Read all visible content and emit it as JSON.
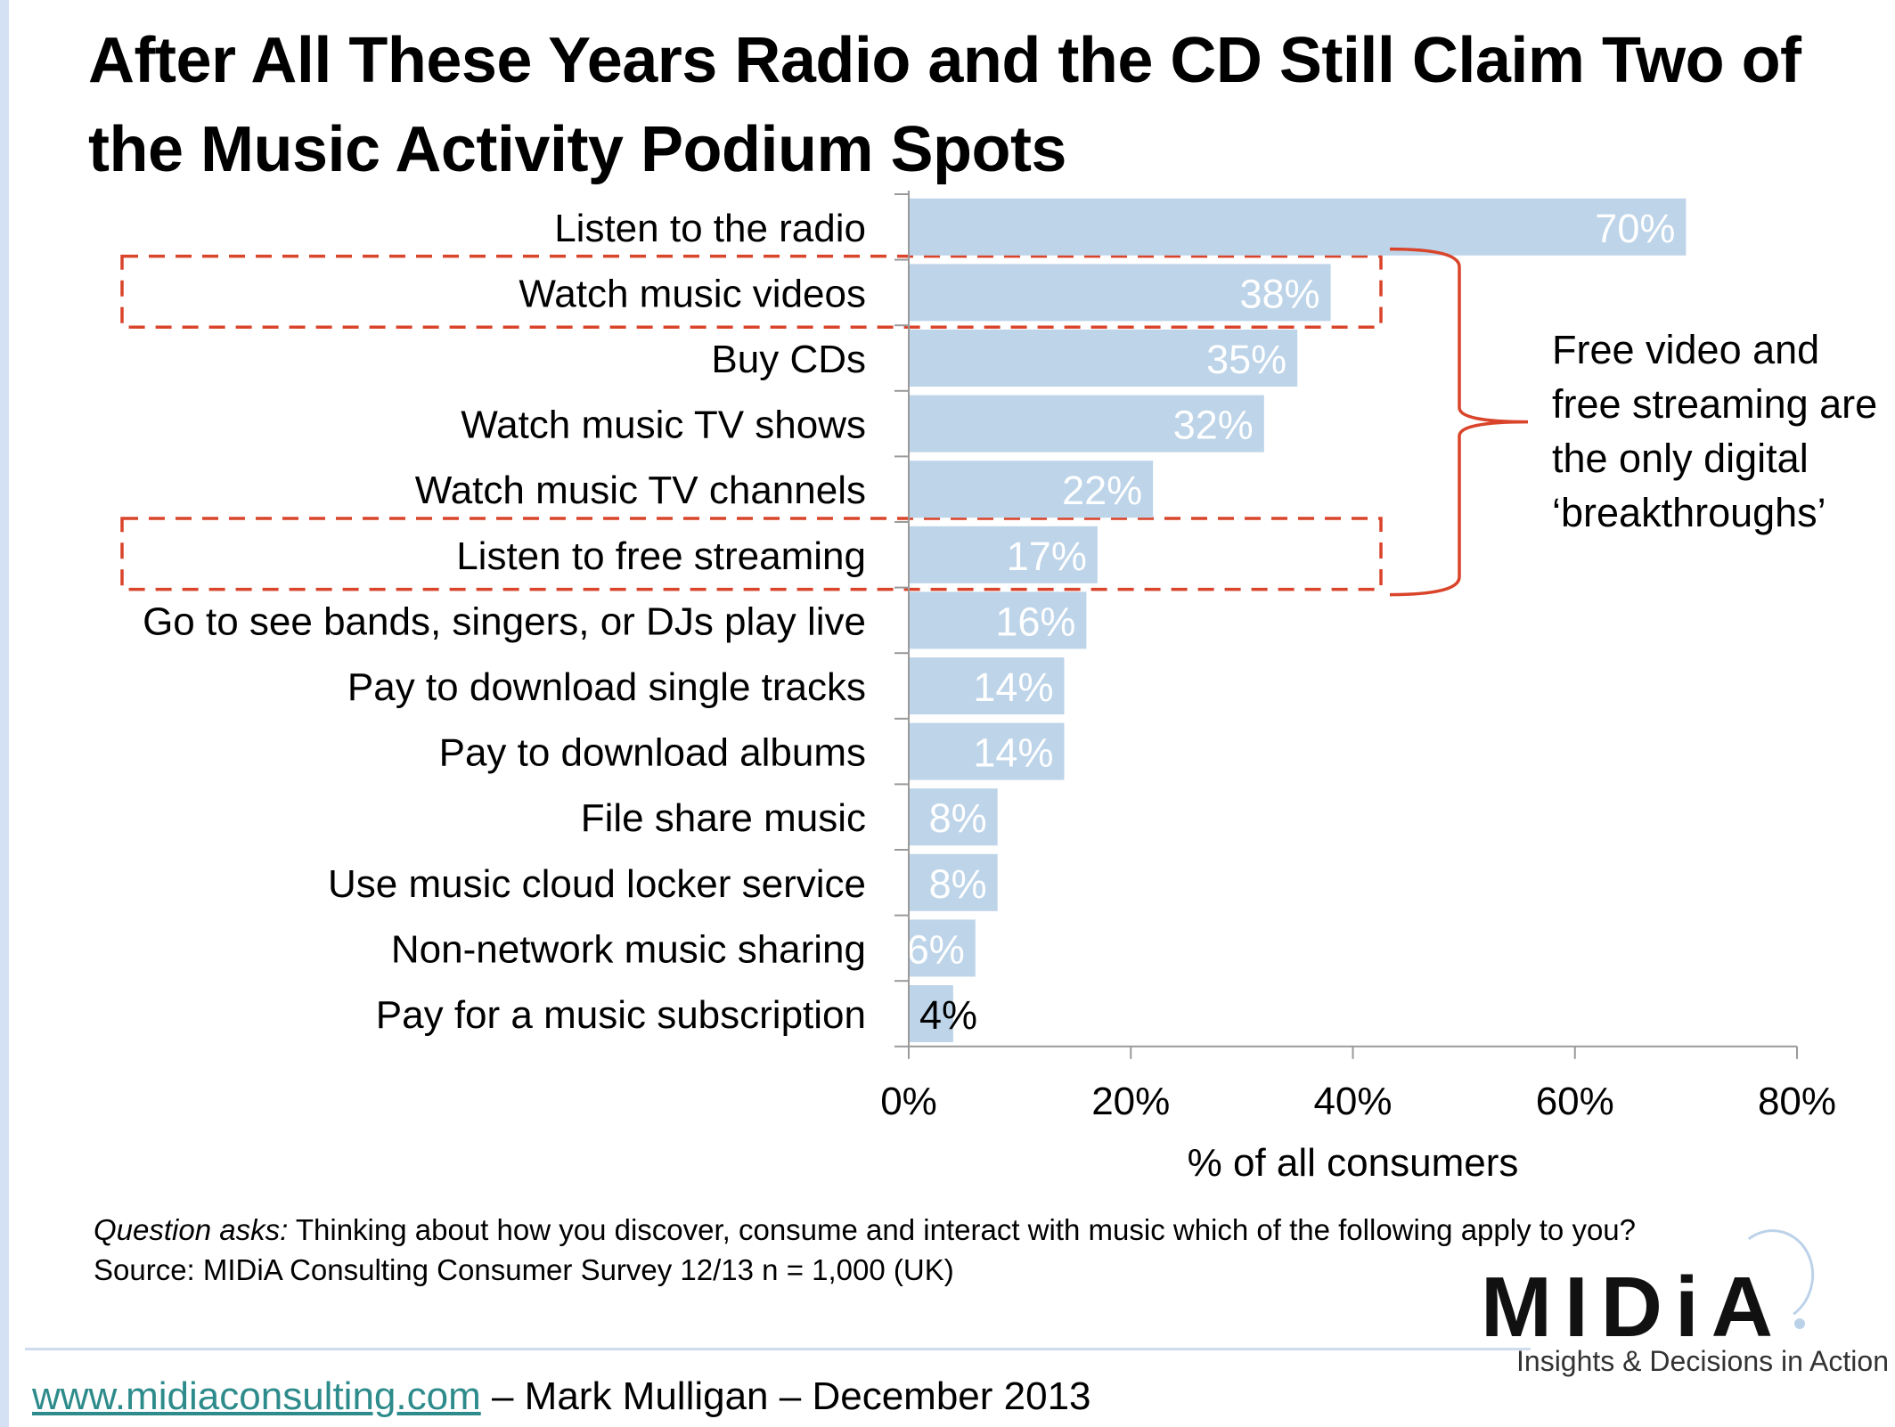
{
  "title": "After All These Years Radio and the CD Still Claim Two of the Music Activity Podium Spots",
  "annotation": "Free video and free streaming are the only digital ‘breakthroughs’",
  "footnote": {
    "question_label": "Question asks:",
    "question_text": " Thinking about how you discover, consume and interact with music which of the following apply to you?",
    "source": "Source: MIDiA Consulting Consumer Survey 12/13 n = 1,000 (UK)"
  },
  "logo": {
    "name": "MIDiA",
    "tagline": "Insights & Decisions in Action"
  },
  "footer": {
    "url": "www.midiaconsulting.com",
    "credit": " – Mark Mulligan – December 2013"
  },
  "colors": {
    "bar": "#bdd4e9",
    "bar_label": "#ffffff",
    "highlight": "#d9442a",
    "axis": "#9a9a9a"
  },
  "chart_data": {
    "type": "bar",
    "orientation": "horizontal",
    "categories": [
      "Listen to the radio",
      "Watch music videos",
      "Buy CDs",
      "Watch music TV shows",
      "Watch music TV channels",
      "Listen to free streaming",
      "Go to see bands, singers, or DJs play live",
      "Pay to download single tracks",
      "Pay to download albums",
      "File share music",
      "Use music cloud locker service",
      "Non-network music sharing",
      "Pay for a music subscription"
    ],
    "values": [
      70,
      38,
      35,
      32,
      22,
      17,
      16,
      14,
      14,
      8,
      8,
      6,
      4
    ],
    "value_labels": [
      "70%",
      "38%",
      "35%",
      "32%",
      "22%",
      "17%",
      "16%",
      "14%",
      "14%",
      "8%",
      "8%",
      "6%",
      "4%"
    ],
    "highlighted": [
      "Watch music videos",
      "Listen to free streaming"
    ],
    "xlabel": "% of all consumers",
    "xlim": [
      0,
      80
    ],
    "xticks": [
      "0%",
      "20%",
      "40%",
      "60%",
      "80%"
    ],
    "grid": false,
    "legend": "none"
  }
}
